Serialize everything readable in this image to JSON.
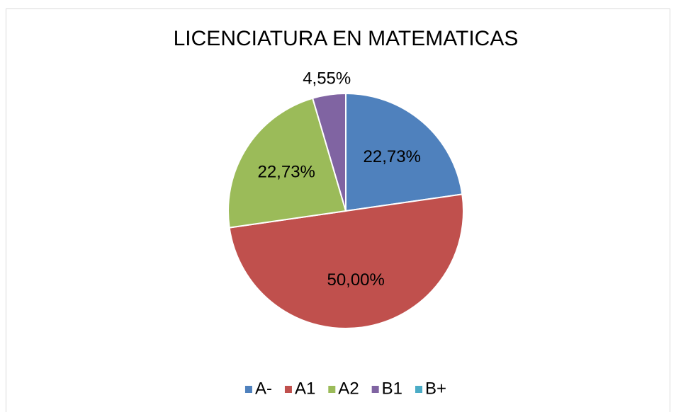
{
  "chart_data": {
    "type": "pie",
    "title": "LICENCIATURA EN MATEMATICAS",
    "categories": [
      "A-",
      "A1",
      "A2",
      "B1",
      "B+"
    ],
    "values": [
      22.73,
      50.0,
      22.73,
      4.55,
      0
    ],
    "value_labels": [
      "22,73%",
      "50,00%",
      "22,73%",
      "4,55%",
      null
    ],
    "colors": [
      "#4f81bd",
      "#c0504d",
      "#9bbb59",
      "#8064a2",
      "#4bacc6"
    ],
    "legend": "bottom"
  }
}
